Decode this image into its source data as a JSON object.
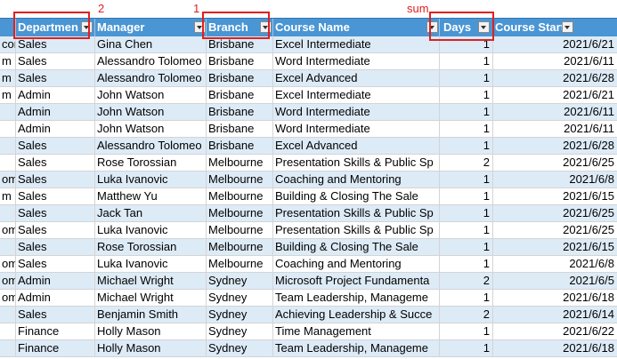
{
  "annotations": {
    "department": "2",
    "branch": "1",
    "days": "sum"
  },
  "headers": {
    "department": "Departmen",
    "manager": "Manager",
    "branch": "Branch",
    "course_name": "Course Name",
    "days": "Days",
    "course_start": "Course Start"
  },
  "rows": [
    {
      "c0": "con",
      "dept": "Sales",
      "manager": "Gina Chen",
      "branch": "Brisbane",
      "course": "Excel Intermediate",
      "days": "1",
      "start": "2021/6/21"
    },
    {
      "c0": "m",
      "dept": "Sales",
      "manager": "Alessandro Tolomeo",
      "branch": "Brisbane",
      "course": "Word Intermediate",
      "days": "1",
      "start": "2021/6/11"
    },
    {
      "c0": "m",
      "dept": "Sales",
      "manager": "Alessandro Tolomeo",
      "branch": "Brisbane",
      "course": "Excel Advanced",
      "days": "1",
      "start": "2021/6/28"
    },
    {
      "c0": "m",
      "dept": "Admin",
      "manager": "John Watson",
      "branch": "Brisbane",
      "course": "Excel Intermediate",
      "days": "1",
      "start": "2021/6/21"
    },
    {
      "c0": "",
      "dept": "Admin",
      "manager": "John Watson",
      "branch": "Brisbane",
      "course": "Word Intermediate",
      "days": "1",
      "start": "2021/6/11"
    },
    {
      "c0": "",
      "dept": "Admin",
      "manager": "John Watson",
      "branch": "Brisbane",
      "course": "Word Intermediate",
      "days": "1",
      "start": "2021/6/11"
    },
    {
      "c0": "",
      "dept": "Sales",
      "manager": "Alessandro Tolomeo",
      "branch": "Brisbane",
      "course": "Excel Advanced",
      "days": "1",
      "start": "2021/6/28"
    },
    {
      "c0": "",
      "dept": "Sales",
      "manager": "Rose Torossian",
      "branch": "Melbourne",
      "course": "Presentation Skills & Public Sp",
      "days": "2",
      "start": "2021/6/25"
    },
    {
      "c0": "om",
      "dept": "Sales",
      "manager": "Luka Ivanovic",
      "branch": "Melbourne",
      "course": "Coaching and Mentoring",
      "days": "1",
      "start": "2021/6/8"
    },
    {
      "c0": "m",
      "dept": "Sales",
      "manager": "Matthew Yu",
      "branch": "Melbourne",
      "course": "Building & Closing The Sale",
      "days": "1",
      "start": "2021/6/15"
    },
    {
      "c0": "",
      "dept": "Sales",
      "manager": "Jack Tan",
      "branch": "Melbourne",
      "course": "Presentation Skills & Public Sp",
      "days": "1",
      "start": "2021/6/25"
    },
    {
      "c0": "om",
      "dept": "Sales",
      "manager": "Luka Ivanovic",
      "branch": "Melbourne",
      "course": "Presentation Skills & Public Sp",
      "days": "1",
      "start": "2021/6/25"
    },
    {
      "c0": "",
      "dept": "Sales",
      "manager": "Rose Torossian",
      "branch": "Melbourne",
      "course": "Building & Closing The Sale",
      "days": "1",
      "start": "2021/6/15"
    },
    {
      "c0": "om",
      "dept": "Sales",
      "manager": "Luka Ivanovic",
      "branch": "Melbourne",
      "course": "Coaching and Mentoring",
      "days": "1",
      "start": "2021/6/8"
    },
    {
      "c0": "om",
      "dept": "Admin",
      "manager": "Michael Wright",
      "branch": "Sydney",
      "course": "Microsoft Project Fundamenta",
      "days": "2",
      "start": "2021/6/5"
    },
    {
      "c0": "om",
      "dept": "Admin",
      "manager": "Michael Wright",
      "branch": "Sydney",
      "course": "Team Leadership, Manageme",
      "days": "1",
      "start": "2021/6/18"
    },
    {
      "c0": "",
      "dept": "Sales",
      "manager": "Benjamin Smith",
      "branch": "Sydney",
      "course": "Achieving Leadership & Succe",
      "days": "2",
      "start": "2021/6/14"
    },
    {
      "c0": "",
      "dept": "Finance",
      "manager": "Holly Mason",
      "branch": "Sydney",
      "course": "Time Management",
      "days": "1",
      "start": "2021/6/22"
    },
    {
      "c0": "",
      "dept": "Finance",
      "manager": "Holly Mason",
      "branch": "Sydney",
      "course": "Team Leadership, Manageme",
      "days": "1",
      "start": "2021/6/18"
    }
  ]
}
